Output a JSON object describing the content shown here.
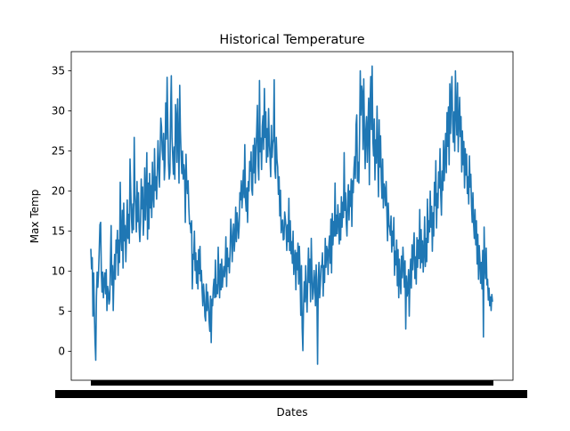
{
  "chart_data": {
    "type": "line",
    "title": "Historical Temperature",
    "xlabel": "Dates",
    "ylabel": "Max Temp",
    "ylim": [
      -3.6,
      37.4
    ],
    "yticks": [
      0,
      5,
      10,
      15,
      20,
      25,
      30,
      35
    ],
    "grid": false,
    "legend": "none",
    "x_tick_labels_note": "hundreds of overlapping daily date tick labels rendered as a solid black band",
    "series": [
      {
        "color": "#1f77b4",
        "values": [
          12.8,
          10.3,
          11.7,
          4.4,
          9.8,
          5.0,
          1.2,
          -1.1,
          6.8,
          9.9,
          8.0,
          9.8,
          12.6,
          15.8,
          16.1,
          9.8,
          7.4,
          9.9,
          6.7,
          8.8,
          9.8,
          7.2,
          10.2,
          5.1,
          8.1,
          7.4,
          5.9,
          6.5,
          11.3,
          15.7,
          8.3,
          10.7,
          5.1,
          9.4,
          12.1,
          9.0,
          13.9,
          12.3,
          15.1,
          9.5,
          13.9,
          11.1,
          21.1,
          14.2,
          12.6,
          17.6,
          10.4,
          18.5,
          13.8,
          15.7,
          11.2,
          14.6,
          18.9,
          14.1,
          17.1,
          13.5,
          24.0,
          20.3,
          16.8,
          14.8,
          18.4,
          15.2,
          26.7,
          19.6,
          18.0,
          14.9,
          21.2,
          16.2,
          19.8,
          15.5,
          13.7,
          16.1,
          21.5,
          17.8,
          20.5,
          14.5,
          17.1,
          22.9,
          16.4,
          19.9,
          24.8,
          14.0,
          21.0,
          15.3,
          22.2,
          17.9,
          20.7,
          16.7,
          23.6,
          19.5,
          18.0,
          25.3,
          20.1,
          21.8,
          19.0,
          22.4,
          26.3,
          23.4,
          20.5,
          24.9,
          29.1,
          28.0,
          25.1,
          23.9,
          27.2,
          21.4,
          23.4,
          31.0,
          26.5,
          34.2,
          28.1,
          23.5,
          21.5,
          22.3,
          29.8,
          34.4,
          26.6,
          24.4,
          22.1,
          25.5,
          21.5,
          30.8,
          29.2,
          23.6,
          31.5,
          26.1,
          21.0,
          33.2,
          27.5,
          24.4,
          22.2,
          25.0,
          21.5,
          23.3,
          22.3,
          16.1,
          24.6,
          21.1,
          19.7,
          21.3,
          18.0,
          15.9,
          16.0,
          14.8,
          16.3,
          7.8,
          12.1,
          11.5,
          15.0,
          10.1,
          12.3,
          8.5,
          11.3,
          7.8,
          12.7,
          9.7,
          13.1,
          8.8,
          10.1,
          7.6,
          5.7,
          8.4,
          6.8,
          4.4,
          3.8,
          8.4,
          5.1,
          7.4,
          6.0,
          3.8,
          2.5,
          6.9,
          1.1,
          6.5,
          5.7,
          7.9,
          9.0,
          6.7,
          11.4,
          6.8,
          8.3,
          7.2,
          13.0,
          9.0,
          6.7,
          10.9,
          7.7,
          11.5,
          8.0,
          9.6,
          10.6,
          9.3,
          10.5,
          14.3,
          8.1,
          12.9,
          10.6,
          11.6,
          9.8,
          12.5,
          16.5,
          15.0,
          11.2,
          14.0,
          15.9,
          12.5,
          14.3,
          18.0,
          13.7,
          17.3,
          16.0,
          14.1,
          15.7,
          19.8,
          18.9,
          21.3,
          17.9,
          20.1,
          22.6,
          19.2,
          25.8,
          19.0,
          17.5,
          20.4,
          16.1,
          21.2,
          20.0,
          23.7,
          22.5,
          24.9,
          20.2,
          19.5,
          25.7,
          22.3,
          26.6,
          21.0,
          24.7,
          27.5,
          30.7,
          23.2,
          21.4,
          33.8,
          24.9,
          26.6,
          22.7,
          28.1,
          29.4,
          25.2,
          32.8,
          26.7,
          29.9,
          23.6,
          27.8,
          24.3,
          30.3,
          26.1,
          24.5,
          21.8,
          28.2,
          24.2,
          25.9,
          26.5,
          33.9,
          22.7,
          21.6,
          26.7,
          23.9,
          23.0,
          19.6,
          21.8,
          16.9,
          20.1,
          14.8,
          15.7,
          16.4,
          13.9,
          14.0,
          17.4,
          16.5,
          15.4,
          12.6,
          15.8,
          13.7,
          19.1,
          12.6,
          16.3,
          12.2,
          13.7,
          11.0,
          15.0,
          9.6,
          11.3,
          12.6,
          7.7,
          12.3,
          10.2,
          13.5,
          8.4,
          13.1,
          9.8,
          4.5,
          10.7,
          2.9,
          0.1,
          5.8,
          8.7,
          6.2,
          10.7,
          7.1,
          4.9,
          9.3,
          12.9,
          8.6,
          11.5,
          6.2,
          14.1,
          9.5,
          6.5,
          7.4,
          10.1,
          8.8,
          5.7,
          10.8,
          7.4,
          -1.6,
          8.9,
          11.1,
          6.7,
          8.3,
          10.7,
          10.5,
          12.3,
          6.9,
          10.7,
          8.6,
          14.1,
          10.5,
          13.1,
          12.6,
          9.6,
          13.0,
          14.4,
          11.0,
          16.5,
          9.8,
          17.2,
          13.3,
          16.2,
          14.4,
          21.0,
          14.4,
          17.0,
          14.7,
          18.3,
          16.3,
          13.4,
          17.2,
          13.9,
          19.3,
          15.5,
          18.6,
          16.7,
          24.8,
          17.6,
          19.8,
          16.1,
          14.4,
          18.8,
          20.8,
          16.4,
          20.0,
          18.1,
          21.5,
          15.6,
          21.3,
          19.8,
          22.8,
          24.3,
          21.6,
          28.3,
          29.5,
          21.2,
          23.6,
          21.0,
          26.4,
          35.0,
          29.5,
          33.1,
          32.3,
          25.2,
          34.0,
          27.4,
          22.8,
          27.7,
          29.3,
          23.6,
          27.8,
          31.6,
          20.8,
          30.6,
          34.3,
          27.7,
          35.6,
          26.4,
          24.4,
          29.0,
          21.4,
          26.4,
          23.5,
          30.6,
          25.1,
          19.3,
          28.9,
          23.0,
          26.9,
          21.6,
          19.1,
          24.0,
          17.9,
          20.9,
          20.2,
          18.2,
          21.2,
          17.6,
          13.8,
          18.5,
          15.8,
          15.4,
          14.5,
          16.9,
          12.4,
          15.0,
          13.2,
          16.7,
          9.5,
          12.5,
          10.8,
          13.9,
          8.2,
          12.7,
          6.7,
          11.5,
          8.9,
          7.2,
          11.9,
          9.2,
          13.0,
          10.8,
          8.0,
          11.3,
          2.8,
          9.4,
          6.9,
          7.6,
          10.2,
          4.4,
          9.2,
          11.5,
          7.9,
          13.3,
          10.2,
          12.8,
          14.8,
          9.1,
          11.8,
          8.4,
          14.2,
          10.5,
          13.9,
          11.6,
          17.7,
          10.4,
          15.2,
          11.1,
          13.8,
          9.9,
          12.3,
          16.8,
          10.6,
          14.1,
          11.2,
          19.0,
          13.6,
          16.3,
          14.9,
          20.0,
          15.5,
          18.1,
          12.5,
          17.3,
          14.4,
          21.1,
          18.2,
          23.8,
          15.4,
          19.7,
          17.9,
          22.4,
          20.4,
          25.3,
          19.6,
          17.0,
          22.5,
          20.1,
          26.3,
          21.3,
          24.1,
          27.2,
          22.3,
          29.8,
          25.6,
          30.5,
          23.3,
          33.4,
          27.2,
          31.9,
          34.3,
          28.4,
          26.1,
          29.9,
          25.0,
          35.0,
          30.2,
          27.0,
          33.5,
          24.9,
          28.6,
          31.7,
          26.8,
          29.3,
          22.4,
          27.5,
          23.3,
          26.2,
          20.4,
          25.3,
          22.0,
          24.6,
          19.7,
          21.8,
          18.4,
          24.4,
          20.5,
          22.1,
          18.2,
          16.1,
          19.8,
          15.9,
          14.1,
          17.7,
          13.3,
          16.3,
          10.9,
          14.6,
          9.0,
          13.2,
          11.4,
          8.5,
          11.1,
          7.8,
          12.6,
          1.8,
          15.5,
          11.0,
          9.1,
          12.9,
          8.3,
          9.0,
          6.4,
          7.9,
          5.7,
          6.8,
          5.1,
          7.1,
          6.2
        ]
      }
    ]
  }
}
